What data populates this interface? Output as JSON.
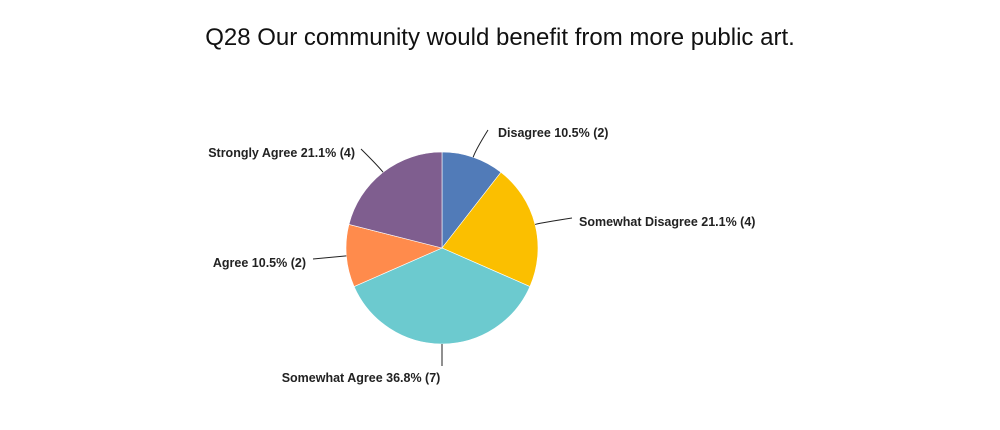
{
  "chart_data": {
    "type": "pie",
    "title": "Q28 Our community would benefit from more public art.",
    "slices": [
      {
        "name": "Disagree",
        "percent_label": "10.5%",
        "count_label": "(2)",
        "value": 2,
        "color": "#517bb8"
      },
      {
        "name": "Somewhat Disagree",
        "percent_label": "21.1%",
        "count_label": "(4)",
        "value": 4,
        "color": "#fbbf00"
      },
      {
        "name": "Somewhat Agree",
        "percent_label": "36.8%",
        "count_label": "(7)",
        "value": 7,
        "color": "#6ccacf"
      },
      {
        "name": "Agree",
        "percent_label": "10.5%",
        "count_label": "(2)",
        "value": 2,
        "color": "#ff8b4c"
      },
      {
        "name": "Strongly Agree",
        "percent_label": "21.1%",
        "count_label": "(4)",
        "value": 4,
        "color": "#7f5e8f"
      }
    ],
    "start_angle": "top",
    "direction": "clockwise"
  }
}
